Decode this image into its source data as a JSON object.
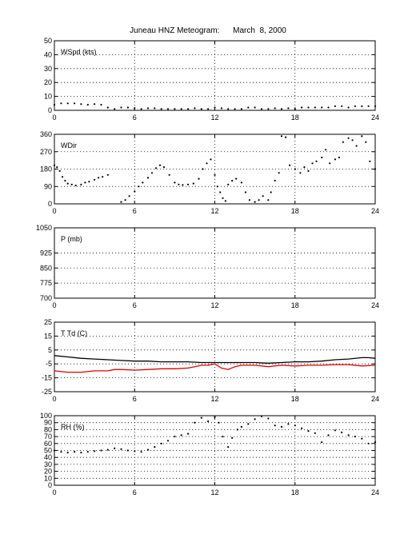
{
  "title": "Juneau HNZ Meteogram:      March  8, 2000",
  "chart_data": [
    {
      "type": "scatter",
      "ylabel": "WSpd (kts)",
      "ylim": [
        0,
        50
      ],
      "yticks": [
        0,
        10,
        20,
        30,
        40,
        50
      ],
      "xlim": [
        0,
        24
      ],
      "xticks": [
        0,
        6,
        12,
        18,
        24
      ],
      "grid": true,
      "series": [
        {
          "color": "#000000",
          "points": [
            [
              0,
              4
            ],
            [
              0.5,
              5
            ],
            [
              1,
              5
            ],
            [
              1.5,
              5
            ],
            [
              2,
              4.5
            ],
            [
              2.5,
              4
            ],
            [
              3,
              4.5
            ],
            [
              3.5,
              4
            ],
            [
              4,
              2
            ],
            [
              4.5,
              1
            ],
            [
              5,
              2
            ],
            [
              5.5,
              2
            ],
            [
              6,
              1.5
            ],
            [
              6.5,
              1
            ],
            [
              7,
              1.5
            ],
            [
              7.5,
              1.5
            ],
            [
              8,
              1
            ],
            [
              8.5,
              1
            ],
            [
              9,
              1
            ],
            [
              9.5,
              1
            ],
            [
              10,
              1
            ],
            [
              10.5,
              1.5
            ],
            [
              11,
              1
            ],
            [
              11.5,
              1
            ],
            [
              12,
              2
            ],
            [
              12.5,
              1.5
            ],
            [
              13,
              1
            ],
            [
              13.5,
              1
            ],
            [
              14,
              1
            ],
            [
              14.5,
              2
            ],
            [
              15,
              2
            ],
            [
              15.5,
              1
            ],
            [
              16,
              1
            ],
            [
              16.5,
              1.5
            ],
            [
              17,
              1
            ],
            [
              17.5,
              1.5
            ],
            [
              18,
              1
            ],
            [
              18.5,
              2
            ],
            [
              19,
              2
            ],
            [
              19.5,
              2
            ],
            [
              20,
              2
            ],
            [
              20.5,
              2
            ],
            [
              21,
              3
            ],
            [
              21.5,
              3
            ],
            [
              22,
              2
            ],
            [
              22.5,
              3
            ],
            [
              23,
              3
            ],
            [
              23.5,
              3
            ],
            [
              24,
              3
            ]
          ]
        }
      ]
    },
    {
      "type": "scatter",
      "ylabel": "WDir",
      "ylim": [
        0,
        360
      ],
      "yticks": [
        0,
        90,
        180,
        270,
        360
      ],
      "xlim": [
        0,
        24
      ],
      "xticks": [
        0,
        6,
        12,
        18,
        24
      ],
      "grid": true,
      "series": [
        {
          "color": "#000000",
          "points": [
            [
              0,
              200
            ],
            [
              0.2,
              190
            ],
            [
              0.4,
              170
            ],
            [
              0.6,
              140
            ],
            [
              0.8,
              120
            ],
            [
              1,
              105
            ],
            [
              1.3,
              100
            ],
            [
              1.6,
              95
            ],
            [
              2,
              100
            ],
            [
              2.3,
              110
            ],
            [
              2.6,
              115
            ],
            [
              3,
              125
            ],
            [
              3.3,
              135
            ],
            [
              3.6,
              140
            ],
            [
              4,
              150
            ],
            [
              5,
              10
            ],
            [
              5.3,
              20
            ],
            [
              5.6,
              40
            ],
            [
              6,
              65
            ],
            [
              6.3,
              90
            ],
            [
              6.6,
              110
            ],
            [
              7,
              135
            ],
            [
              7.3,
              160
            ],
            [
              7.6,
              185
            ],
            [
              7.9,
              200
            ],
            [
              8.2,
              190
            ],
            [
              8.6,
              150
            ],
            [
              9,
              110
            ],
            [
              9.3,
              100
            ],
            [
              9.6,
              98
            ],
            [
              10,
              100
            ],
            [
              10.4,
              105
            ],
            [
              10.8,
              130
            ],
            [
              11.1,
              180
            ],
            [
              11.4,
              210
            ],
            [
              11.7,
              230
            ],
            [
              12,
              150
            ],
            [
              12.2,
              90
            ],
            [
              12.4,
              60
            ],
            [
              12.6,
              30
            ],
            [
              12.8,
              15
            ],
            [
              13,
              100
            ],
            [
              13.3,
              120
            ],
            [
              13.6,
              130
            ],
            [
              14,
              110
            ],
            [
              14.3,
              60
            ],
            [
              14.6,
              20
            ],
            [
              15,
              10
            ],
            [
              15.3,
              20
            ],
            [
              15.6,
              40
            ],
            [
              16,
              20
            ],
            [
              16.2,
              60
            ],
            [
              16.5,
              120
            ],
            [
              16.8,
              160
            ],
            [
              17,
              350
            ],
            [
              17.3,
              345
            ],
            [
              17.6,
              200
            ],
            [
              18,
              180
            ],
            [
              18.4,
              160
            ],
            [
              18.7,
              190
            ],
            [
              19,
              170
            ],
            [
              19.3,
              210
            ],
            [
              19.6,
              220
            ],
            [
              20,
              240
            ],
            [
              20.3,
              280
            ],
            [
              20.6,
              210
            ],
            [
              21,
              230
            ],
            [
              21.3,
              240
            ],
            [
              21.6,
              320
            ],
            [
              22,
              340
            ],
            [
              22.3,
              330
            ],
            [
              22.6,
              300
            ],
            [
              23,
              350
            ],
            [
              23.3,
              320
            ],
            [
              23.6,
              220
            ],
            [
              24,
              180
            ]
          ]
        }
      ]
    },
    {
      "type": "scatter",
      "ylabel": "P (mb)",
      "ylim": [
        700,
        1050
      ],
      "yticks": [
        700,
        775,
        850,
        925,
        1050
      ],
      "xlim": [
        0,
        24
      ],
      "xticks": [
        0,
        6,
        12,
        18,
        24
      ],
      "grid": true,
      "series": []
    },
    {
      "type": "line",
      "ylabel": "T Td (C)",
      "ylim": [
        -25,
        25
      ],
      "yticks": [
        -25,
        -15,
        -5,
        5,
        15,
        25
      ],
      "xlim": [
        0,
        24
      ],
      "xticks": [
        0,
        6,
        12,
        18,
        24
      ],
      "grid": true,
      "series": [
        {
          "color": "#000000",
          "points": [
            [
              0,
              1
            ],
            [
              1,
              0
            ],
            [
              2,
              -1
            ],
            [
              3,
              -1.5
            ],
            [
              4,
              -2
            ],
            [
              5,
              -2.5
            ],
            [
              6,
              -3
            ],
            [
              7,
              -3
            ],
            [
              8,
              -3.5
            ],
            [
              9,
              -3.5
            ],
            [
              10,
              -3.5
            ],
            [
              11,
              -4
            ],
            [
              12,
              -4
            ],
            [
              13,
              -4
            ],
            [
              14,
              -4
            ],
            [
              15,
              -4
            ],
            [
              16,
              -4.5
            ],
            [
              17,
              -4
            ],
            [
              18,
              -3.5
            ],
            [
              19,
              -3.5
            ],
            [
              20,
              -3
            ],
            [
              21,
              -2
            ],
            [
              22,
              -1.5
            ],
            [
              23,
              -0.5
            ],
            [
              23.5,
              -0.5
            ],
            [
              24,
              -1
            ]
          ]
        },
        {
          "color": "#e00000",
          "points": [
            [
              0,
              -10
            ],
            [
              1,
              -11
            ],
            [
              2,
              -11
            ],
            [
              3,
              -10
            ],
            [
              4,
              -10
            ],
            [
              4.5,
              -9
            ],
            [
              5,
              -9
            ],
            [
              6,
              -9.5
            ],
            [
              7,
              -9
            ],
            [
              8,
              -8.5
            ],
            [
              9,
              -8.5
            ],
            [
              10,
              -8
            ],
            [
              10.5,
              -7
            ],
            [
              11,
              -6
            ],
            [
              11.5,
              -6
            ],
            [
              12,
              -5
            ],
            [
              12.5,
              -8
            ],
            [
              13,
              -9
            ],
            [
              13.5,
              -7
            ],
            [
              14,
              -6
            ],
            [
              15,
              -6
            ],
            [
              16,
              -7
            ],
            [
              17,
              -6
            ],
            [
              18,
              -6.5
            ],
            [
              19,
              -6
            ],
            [
              20,
              -6
            ],
            [
              21,
              -5.5
            ],
            [
              22,
              -5.5
            ],
            [
              23,
              -6.5
            ],
            [
              24,
              -6
            ]
          ]
        }
      ]
    },
    {
      "type": "scatter",
      "ylabel": "RH (%)",
      "ylim": [
        0,
        100
      ],
      "yticks": [
        0,
        10,
        20,
        30,
        40,
        50,
        60,
        70,
        80,
        90,
        100
      ],
      "xlim": [
        0,
        24
      ],
      "xticks": [
        0,
        6,
        12,
        18,
        24
      ],
      "grid": true,
      "series": [
        {
          "color": "#000000",
          "points": [
            [
              0,
              50
            ],
            [
              0.5,
              48
            ],
            [
              1,
              47
            ],
            [
              1.5,
              48
            ],
            [
              2,
              47
            ],
            [
              2.5,
              48
            ],
            [
              3,
              49
            ],
            [
              3.5,
              50
            ],
            [
              4,
              51
            ],
            [
              4.5,
              53
            ],
            [
              5,
              52
            ],
            [
              5.5,
              50
            ],
            [
              6,
              49
            ],
            [
              6.5,
              48
            ],
            [
              7,
              51
            ],
            [
              7.5,
              55
            ],
            [
              8,
              60
            ],
            [
              8.5,
              64
            ],
            [
              9,
              70
            ],
            [
              9.5,
              72
            ],
            [
              10,
              74
            ],
            [
              10.5,
              90
            ],
            [
              11,
              97
            ],
            [
              11.5,
              92
            ],
            [
              12,
              98
            ],
            [
              12.3,
              90
            ],
            [
              12.6,
              70
            ],
            [
              13,
              55
            ],
            [
              13.3,
              68
            ],
            [
              13.7,
              80
            ],
            [
              14,
              84
            ],
            [
              14.5,
              88
            ],
            [
              15,
              95
            ],
            [
              15.5,
              99
            ],
            [
              16,
              96
            ],
            [
              16.5,
              86
            ],
            [
              17,
              84
            ],
            [
              17.5,
              88
            ],
            [
              18,
              86
            ],
            [
              18.5,
              82
            ],
            [
              19,
              78
            ],
            [
              19.5,
              75
            ],
            [
              20,
              62
            ],
            [
              20.5,
              72
            ],
            [
              21,
              79
            ],
            [
              21.5,
              76
            ],
            [
              22,
              72
            ],
            [
              22.5,
              70
            ],
            [
              23,
              67
            ],
            [
              23.5,
              60
            ],
            [
              24,
              62
            ]
          ]
        }
      ]
    }
  ]
}
